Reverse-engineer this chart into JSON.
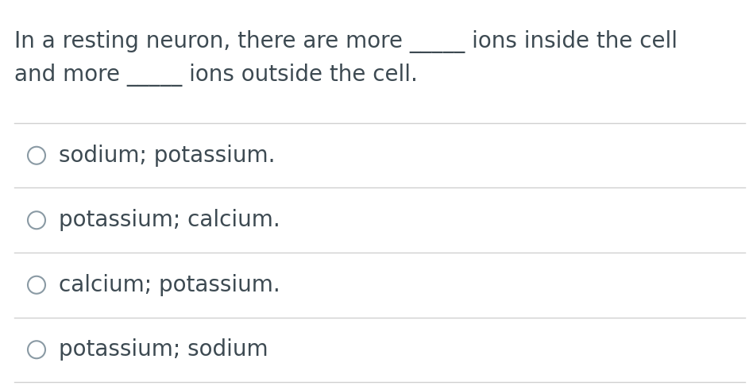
{
  "background_color": "#ffffff",
  "text_color": "#3d4a52",
  "question_line1": "In a resting neuron, there are more _____ ions inside the cell",
  "question_line2": "and more _____ ions outside the cell.",
  "options": [
    "sodium; potassium.",
    "potassium; calcium.",
    "calcium; potassium.",
    "potassium; sodium"
  ],
  "circle_color": "#8a9aa4",
  "line_color": "#d0d0d0",
  "font_size_question": 20,
  "font_size_options": 20,
  "fig_width": 9.48,
  "fig_height": 4.86,
  "dpi": 100
}
